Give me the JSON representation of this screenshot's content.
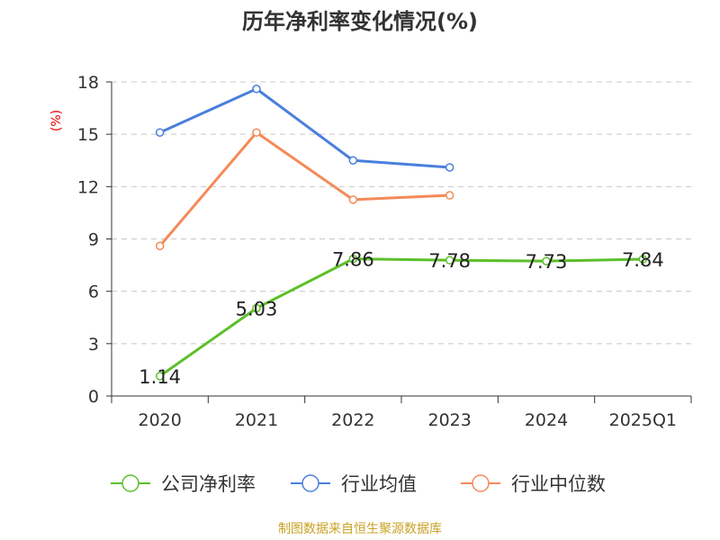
{
  "chart_data": {
    "type": "line",
    "title": "历年净利率变化情况(%)",
    "ylabel": "(%)",
    "categories": [
      "2020",
      "2021",
      "2022",
      "2023",
      "2024",
      "2025Q1"
    ],
    "ylim": [
      0,
      18
    ],
    "yticks": [
      0,
      3,
      6,
      9,
      12,
      15,
      18
    ],
    "grid": true,
    "legend_position": "bottom",
    "series": [
      {
        "name": "公司净利率",
        "color": "#5dbf2a",
        "values": [
          1.14,
          5.03,
          7.86,
          7.78,
          7.73,
          7.84
        ],
        "show_labels": true
      },
      {
        "name": "行业均值",
        "color": "#4a7fdc",
        "values": [
          15.1,
          17.6,
          13.5,
          13.1,
          null,
          null
        ],
        "show_labels": false
      },
      {
        "name": "行业中位数",
        "color": "#f48a58",
        "values": [
          8.6,
          15.1,
          11.25,
          11.5,
          null,
          null
        ],
        "show_labels": false
      }
    ]
  },
  "source": "制图数据来自恒生聚源数据库"
}
